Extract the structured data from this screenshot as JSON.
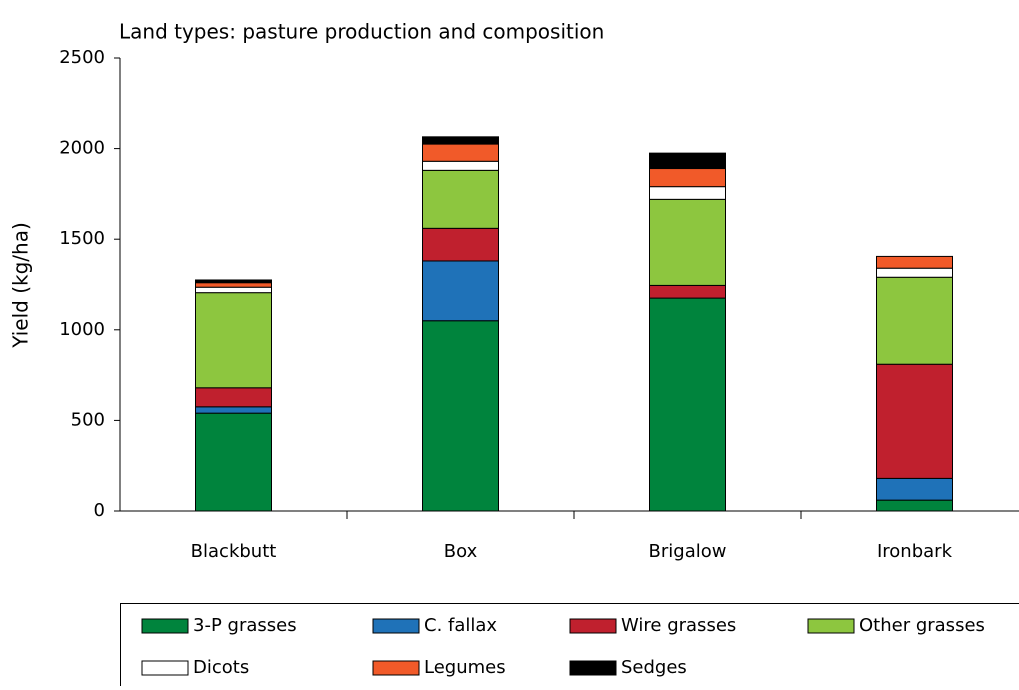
{
  "chart_data": {
    "type": "stacked_bar",
    "title": "Land types: pasture production and composition",
    "y_label": "Yield (kg/ha)",
    "categories": [
      "Blackbutt",
      "Box",
      "Brigalow",
      "Ironbark"
    ],
    "series": [
      {
        "name": "3-P grasses",
        "color": "#00843d",
        "values": [
          540,
          1050,
          1175,
          60
        ]
      },
      {
        "name": "C. fallax",
        "color": "#1f72b8",
        "values": [
          35,
          330,
          0,
          120
        ]
      },
      {
        "name": "Wire grasses",
        "color": "#c0202e",
        "values": [
          105,
          180,
          70,
          630
        ]
      },
      {
        "name": "Other grasses",
        "color": "#8dc63f",
        "values": [
          525,
          320,
          475,
          480
        ]
      },
      {
        "name": "Dicots",
        "color": "#ffffff",
        "values": [
          30,
          50,
          70,
          50
        ]
      },
      {
        "name": "Legumes",
        "color": "#f15a29",
        "values": [
          25,
          95,
          100,
          65
        ]
      },
      {
        "name": "Sedges",
        "color": "#000000",
        "values": [
          15,
          40,
          85,
          0
        ]
      }
    ],
    "ylim": [
      0,
      2500
    ],
    "yticks": [
      0,
      500,
      1000,
      1500,
      2000,
      2500
    ],
    "legend": "bottom"
  }
}
